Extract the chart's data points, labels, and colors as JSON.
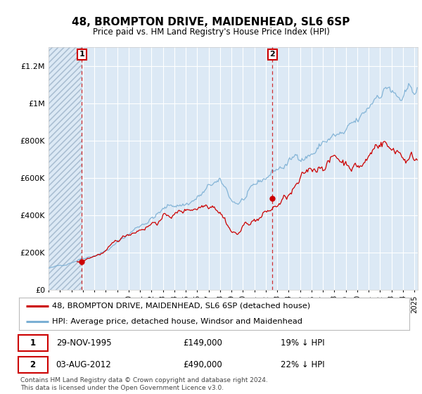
{
  "title": "48, BROMPTON DRIVE, MAIDENHEAD, SL6 6SP",
  "subtitle": "Price paid vs. HM Land Registry's House Price Index (HPI)",
  "legend_line1": "48, BROMPTON DRIVE, MAIDENHEAD, SL6 6SP (detached house)",
  "legend_line2": "HPI: Average price, detached house, Windsor and Maidenhead",
  "annotation1_date": "29-NOV-1995",
  "annotation1_price": "£149,000",
  "annotation1_hpi": "19% ↓ HPI",
  "annotation2_date": "03-AUG-2012",
  "annotation2_price": "£490,000",
  "annotation2_hpi": "22% ↓ HPI",
  "footer": "Contains HM Land Registry data © Crown copyright and database right 2024.\nThis data is licensed under the Open Government Licence v3.0.",
  "price_color": "#cc0000",
  "hpi_color": "#7bafd4",
  "background_color": "#dce9f5",
  "hatch_color": "#c8d8e8",
  "ylim": [
    0,
    1300000
  ],
  "yticks": [
    0,
    200000,
    400000,
    600000,
    800000,
    1000000,
    1200000
  ],
  "ytick_labels": [
    "£0",
    "£200K",
    "£400K",
    "£600K",
    "£800K",
    "£1M",
    "£1.2M"
  ],
  "sale1_x": 1995.92,
  "sale1_y": 149000,
  "sale2_x": 2012.58,
  "sale2_y": 490000,
  "xmin": 1993.0,
  "xmax": 2025.3,
  "hatch_end": 1995.92
}
